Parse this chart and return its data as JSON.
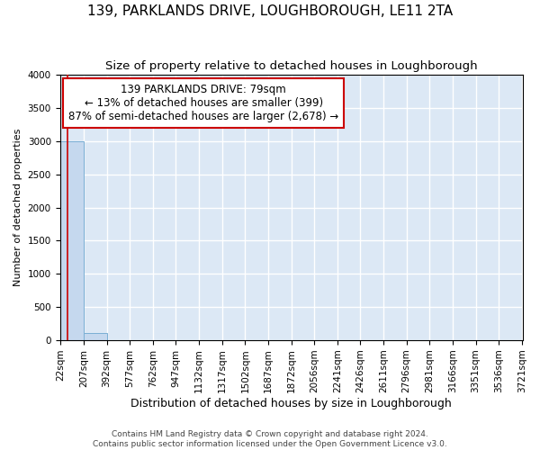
{
  "title": "139, PARKLANDS DRIVE, LOUGHBOROUGH, LE11 2TA",
  "subtitle": "Size of property relative to detached houses in Loughborough",
  "xlabel": "Distribution of detached houses by size in Loughborough",
  "ylabel": "Number of detached properties",
  "footer_line1": "Contains HM Land Registry data © Crown copyright and database right 2024.",
  "footer_line2": "Contains public sector information licensed under the Open Government Licence v3.0.",
  "bar_edges": [
    22,
    207,
    392,
    577,
    762,
    947,
    1132,
    1317,
    1502,
    1687,
    1872,
    2056,
    2241,
    2426,
    2611,
    2796,
    2981,
    3166,
    3351,
    3536,
    3721
  ],
  "bar_heights": [
    3000,
    110,
    0,
    0,
    0,
    0,
    0,
    0,
    0,
    0,
    0,
    0,
    0,
    0,
    0,
    0,
    0,
    0,
    0,
    0
  ],
  "bar_color": "#c5d8ee",
  "bar_edgecolor": "#7aafd4",
  "property_size": 79,
  "property_marker_color": "#cc0000",
  "annotation_line1": "139 PARKLANDS DRIVE: 79sqm",
  "annotation_line2": "← 13% of detached houses are smaller (399)",
  "annotation_line3": "87% of semi-detached houses are larger (2,678) →",
  "annotation_box_color": "#cc0000",
  "ylim": [
    0,
    4000
  ],
  "yticks": [
    0,
    500,
    1000,
    1500,
    2000,
    2500,
    3000,
    3500,
    4000
  ],
  "background_color": "#dce8f5",
  "grid_color": "#ffffff",
  "title_fontsize": 11,
  "subtitle_fontsize": 9.5,
  "xlabel_fontsize": 9,
  "ylabel_fontsize": 8,
  "tick_fontsize": 7.5,
  "annotation_fontsize": 8.5,
  "footer_fontsize": 6.5
}
